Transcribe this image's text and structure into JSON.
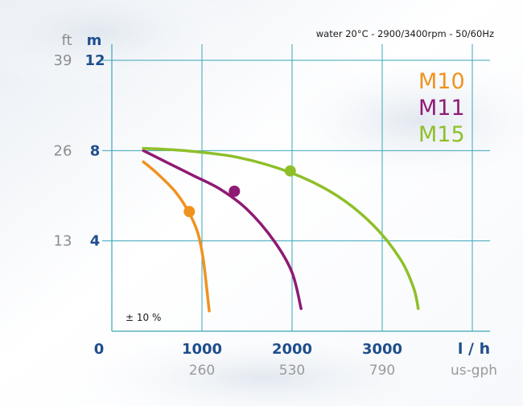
{
  "chart_data": {
    "type": "line",
    "subtitle": "water 20°C - 2900/3400rpm - 50/60Hz",
    "tolerance_note": "± 10 %",
    "x_unit_primary": "l / h",
    "x_unit_secondary": "us-gph",
    "y_unit_primary": "m",
    "y_unit_secondary": "ft",
    "x_origin_label": "0",
    "xlim": [
      0,
      4300
    ],
    "ylim": [
      0,
      12
    ],
    "grid": true,
    "legend_position": "top-right",
    "x_ticks": [
      {
        "value": 1000,
        "label": "1000",
        "label_secondary": "260"
      },
      {
        "value": 2000,
        "label": "2000",
        "label_secondary": "530"
      },
      {
        "value": 3000,
        "label": "3000",
        "label_secondary": "790"
      },
      {
        "value": 4000
      }
    ],
    "y_ticks": [
      {
        "value": 4,
        "label": "4",
        "label_secondary": "13"
      },
      {
        "value": 8,
        "label": "8",
        "label_secondary": "26"
      },
      {
        "value": 12,
        "label": "12",
        "label_secondary": "39"
      }
    ],
    "series": [
      {
        "name": "M10",
        "color": "#f0921f",
        "points": [
          [
            350,
            7.5
          ],
          [
            500,
            7.0
          ],
          [
            700,
            6.2
          ],
          [
            850,
            5.3
          ],
          [
            950,
            4.4
          ],
          [
            1010,
            3.3
          ],
          [
            1050,
            2.0
          ],
          [
            1080,
            0.9
          ]
        ],
        "marker": [
          860,
          5.3
        ]
      },
      {
        "name": "M11",
        "color": "#8e1b74",
        "points": [
          [
            350,
            8.0
          ],
          [
            600,
            7.5
          ],
          [
            900,
            6.9
          ],
          [
            1200,
            6.3
          ],
          [
            1500,
            5.4
          ],
          [
            1800,
            4.0
          ],
          [
            2000,
            2.6
          ],
          [
            2100,
            1.0
          ]
        ],
        "marker": [
          1360,
          6.2
        ]
      },
      {
        "name": "M15",
        "color": "#8ebf2a",
        "points": [
          [
            350,
            8.1
          ],
          [
            800,
            8.0
          ],
          [
            1400,
            7.7
          ],
          [
            2000,
            7.0
          ],
          [
            2500,
            6.0
          ],
          [
            2900,
            4.7
          ],
          [
            3200,
            3.2
          ],
          [
            3350,
            1.9
          ],
          [
            3400,
            1.0
          ]
        ],
        "marker": [
          1980,
          7.1
        ]
      }
    ]
  }
}
